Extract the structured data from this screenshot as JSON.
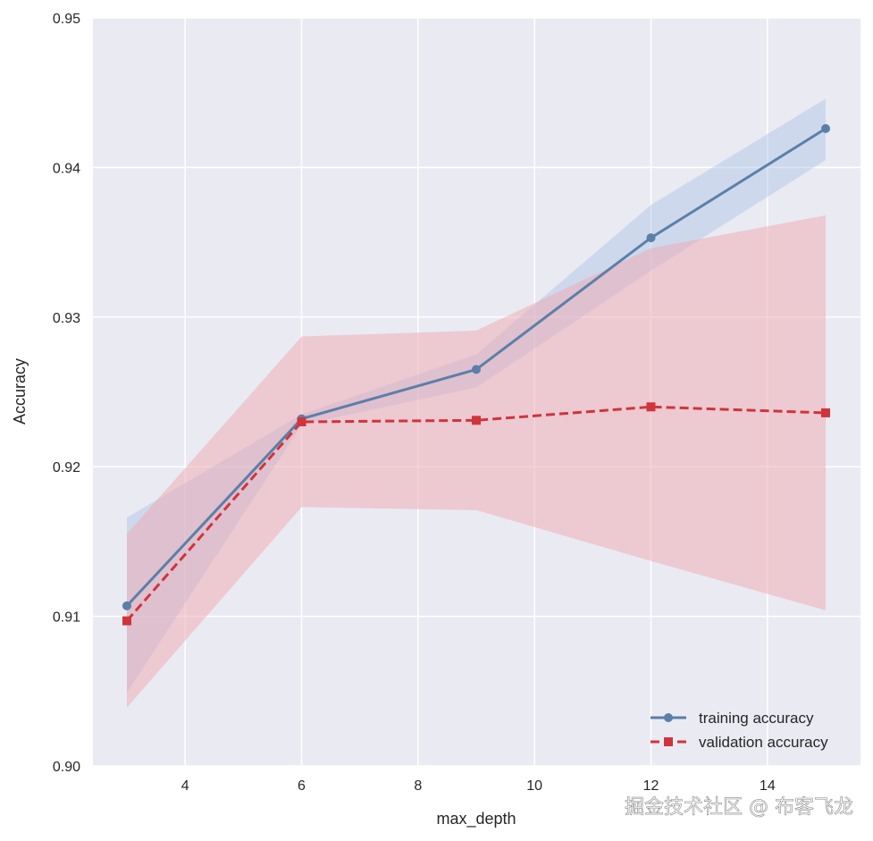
{
  "chart_data": {
    "type": "line",
    "title": "",
    "xlabel": "max_depth",
    "ylabel": "Accuracy",
    "xlim": [
      2.4,
      15.6
    ],
    "ylim": [
      0.9,
      0.95
    ],
    "xticks": [
      4,
      6,
      8,
      10,
      12,
      14
    ],
    "yticks": [
      0.9,
      0.91,
      0.92,
      0.93,
      0.94,
      0.95
    ],
    "ytick_labels": [
      "0.90",
      "0.91",
      "0.92",
      "0.93",
      "0.94",
      "0.95"
    ],
    "grid": true,
    "background": "#eaeaf2",
    "legend_position": "lower-right",
    "x": [
      3,
      6,
      9,
      12,
      15
    ],
    "series": [
      {
        "name": "training accuracy",
        "color": "#5b7fa8",
        "band_color": "#aec4e6",
        "marker": "circle",
        "linestyle": "solid",
        "values": [
          0.9107,
          0.9232,
          0.9265,
          0.9353,
          0.9426
        ],
        "lower": [
          0.9049,
          0.9228,
          0.9253,
          0.9331,
          0.9405
        ],
        "upper": [
          0.9166,
          0.9235,
          0.9275,
          0.9375,
          0.9446
        ]
      },
      {
        "name": "validation accuracy",
        "color": "#d0343c",
        "band_color": "#f0a8b0",
        "marker": "square",
        "linestyle": "dashed",
        "values": [
          0.9097,
          0.923,
          0.9231,
          0.924,
          0.9236
        ],
        "lower": [
          0.9039,
          0.9173,
          0.9171,
          0.9137,
          0.9104
        ],
        "upper": [
          0.9155,
          0.9287,
          0.9291,
          0.9346,
          0.9368
        ]
      }
    ]
  },
  "watermark": "掘金技术社区 @ 布客飞龙"
}
